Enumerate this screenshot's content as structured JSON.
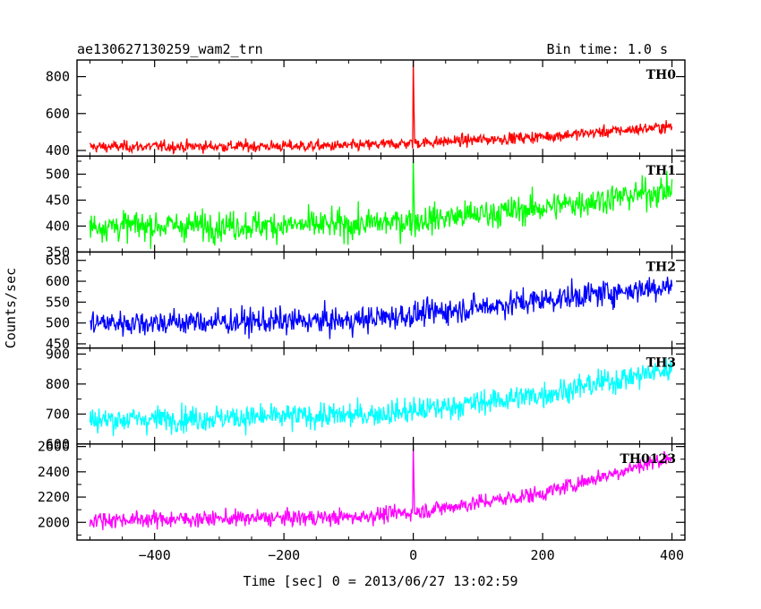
{
  "header": {
    "title": "ae130627130259_wam2_trn",
    "bin_time": "Bin time: 1.0 s"
  },
  "axes": {
    "xlabel": "Time [sec] 0 = 2013/06/27 13:02:59",
    "ylabel": "Counts/sec"
  },
  "chart_data": {
    "type": "line",
    "title": "ae130627130259_wam2_trn",
    "subtitle": "Bin time: 1.0 s",
    "xlabel": "Time [sec] 0 = 2013/06/27 13:02:59",
    "ylabel": "Counts/sec",
    "xlim": [
      -520,
      420
    ],
    "x_ticks": [
      -400,
      -200,
      0,
      200,
      400
    ],
    "x_step": 1,
    "grid": false,
    "legend": "none",
    "panels": [
      {
        "name": "TH0",
        "color": "#ff0000",
        "ylim": [
          370,
          890
        ],
        "y_ticks": [
          400,
          600,
          800
        ],
        "x_range": [
          -500,
          400
        ],
        "trend": [
          {
            "x": -500,
            "y": 420
          },
          {
            "x": -100,
            "y": 425
          },
          {
            "x": 0,
            "y": 440
          },
          {
            "x": 200,
            "y": 475
          },
          {
            "x": 400,
            "y": 530
          }
        ],
        "noise": 22,
        "spike": {
          "x": 0,
          "y": 890
        }
      },
      {
        "name": "TH1",
        "color": "#00ff00",
        "ylim": [
          350,
          535
        ],
        "y_ticks": [
          350,
          400,
          450,
          500
        ],
        "x_range": [
          -500,
          400
        ],
        "trend": [
          {
            "x": -500,
            "y": 400
          },
          {
            "x": -100,
            "y": 402
          },
          {
            "x": 0,
            "y": 410
          },
          {
            "x": 200,
            "y": 435
          },
          {
            "x": 400,
            "y": 470
          }
        ],
        "noise": 20,
        "spike": {
          "x": 0,
          "y": 530
        }
      },
      {
        "name": "TH2",
        "color": "#0000ff",
        "ylim": [
          440,
          670
        ],
        "y_ticks": [
          450,
          500,
          550,
          600,
          650
        ],
        "x_range": [
          -500,
          400
        ],
        "trend": [
          {
            "x": -500,
            "y": 500
          },
          {
            "x": -100,
            "y": 505
          },
          {
            "x": 0,
            "y": 520
          },
          {
            "x": 200,
            "y": 555
          },
          {
            "x": 400,
            "y": 590
          }
        ],
        "noise": 22,
        "spike": null
      },
      {
        "name": "TH3",
        "color": "#00ffff",
        "ylim": [
          600,
          920
        ],
        "y_ticks": [
          600,
          700,
          800,
          900
        ],
        "x_range": [
          -500,
          400
        ],
        "trend": [
          {
            "x": -500,
            "y": 680
          },
          {
            "x": -100,
            "y": 695
          },
          {
            "x": 0,
            "y": 710
          },
          {
            "x": 200,
            "y": 765
          },
          {
            "x": 400,
            "y": 850
          }
        ],
        "noise": 30,
        "spike": null
      },
      {
        "name": "TH0123",
        "color": "#ff00ff",
        "ylim": [
          1860,
          2620
        ],
        "y_ticks": [
          2000,
          2200,
          2400,
          2600
        ],
        "x_range": [
          -500,
          400
        ],
        "trend": [
          {
            "x": -500,
            "y": 2020
          },
          {
            "x": -100,
            "y": 2040
          },
          {
            "x": 0,
            "y": 2080
          },
          {
            "x": 200,
            "y": 2230
          },
          {
            "x": 400,
            "y": 2520
          }
        ],
        "noise": 45,
        "spike": {
          "x": 0,
          "y": 2600
        }
      }
    ]
  }
}
